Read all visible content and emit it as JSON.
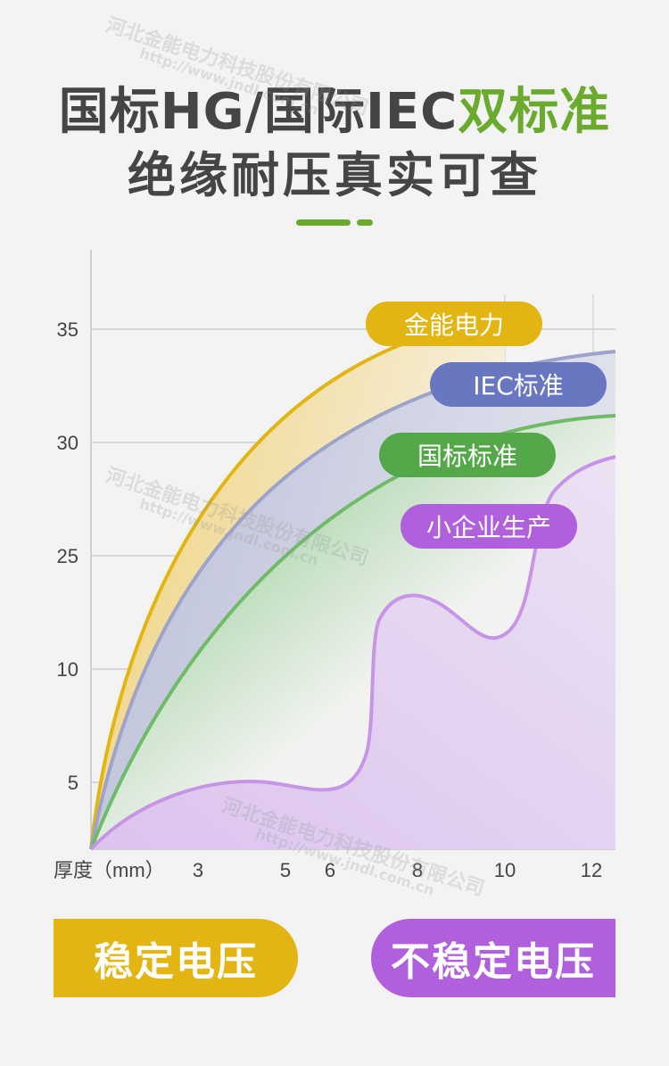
{
  "header": {
    "title_line1_main": "国标HG/国际IEC",
    "title_line1_accent": "双标准",
    "title_line2": "绝缘耐压真实可查"
  },
  "colors": {
    "gold": "#e2b512",
    "blue": "#6877c0",
    "green": "#55a84a",
    "purple": "#b060dd",
    "accent": "#6aab2e",
    "text": "#454545"
  },
  "chart_data": {
    "type": "area",
    "xlabel": "厚度（mm）",
    "x_ticks": [
      "3",
      "5",
      "6",
      "8",
      "10",
      "12"
    ],
    "y_ticks": [
      "35",
      "30",
      "25",
      "10",
      "5"
    ],
    "grid": true,
    "series": [
      {
        "name": "金能电力",
        "color": "#e2b512"
      },
      {
        "name": "IEC标准",
        "color": "#6877c0"
      },
      {
        "name": "国标标准",
        "color": "#55a84a"
      },
      {
        "name": "小企业生产",
        "color": "#b060dd"
      }
    ]
  },
  "buttons": {
    "stable": "稳定电压",
    "unstable": "不稳定电压"
  },
  "watermark": {
    "company": "河北金能电力科技股份有限公司",
    "url": "http://www.jndl.com.cn"
  }
}
